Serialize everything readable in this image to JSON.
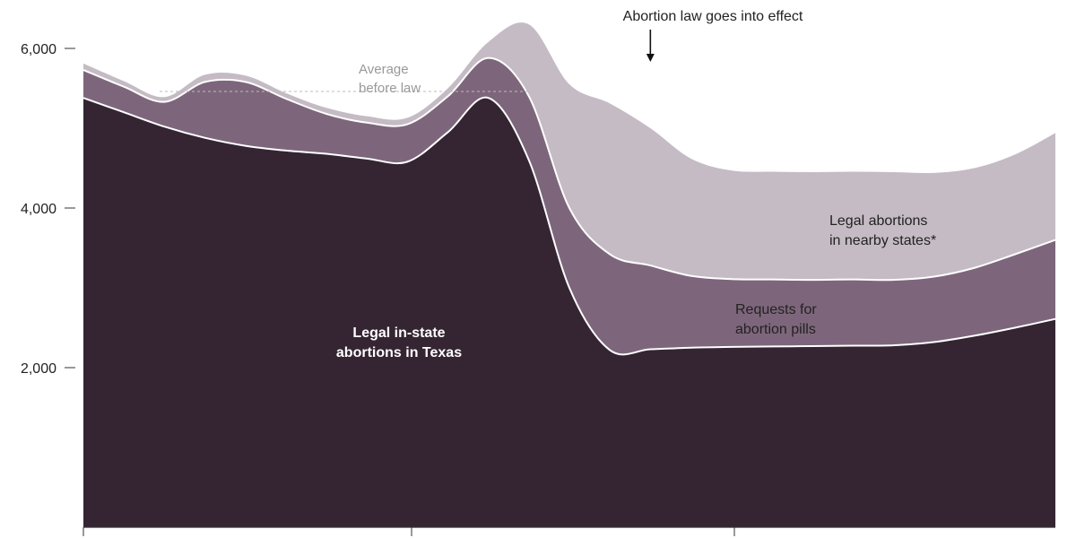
{
  "chart_data": {
    "type": "area",
    "stacked": true,
    "x": [
      0,
      1,
      2,
      3,
      4,
      5,
      6,
      7,
      8,
      9,
      10,
      11,
      12,
      13,
      14,
      15,
      16,
      17,
      18,
      19,
      20,
      21,
      22,
      23,
      24
    ],
    "ylim": [
      0,
      6000
    ],
    "yticks": [
      2000,
      4000,
      6000
    ],
    "ytick_labels": [
      "2,000",
      "4,000",
      "6,000"
    ],
    "series": [
      {
        "name": "Legal in-state abortions in Texas",
        "label_lines": [
          "Legal in-state",
          "abortions in Texas"
        ],
        "color": "#352533",
        "values": [
          5380,
          5200,
          5020,
          4880,
          4780,
          4720,
          4680,
          4620,
          4580,
          4950,
          5380,
          4600,
          3000,
          2220,
          2230,
          2250,
          2260,
          2265,
          2270,
          2275,
          2280,
          2320,
          2400,
          2500,
          2610
        ]
      },
      {
        "name": "Requests for abortion pills",
        "label_lines": [
          "Requests for",
          "abortion pills"
        ],
        "color": "#7d667b",
        "values": [
          350,
          320,
          310,
          700,
          800,
          650,
          500,
          450,
          470,
          450,
          500,
          800,
          1000,
          1200,
          1050,
          900,
          850,
          840,
          830,
          830,
          820,
          820,
          850,
          920,
          990
        ]
      },
      {
        "name": "Legal abortions in nearby states*",
        "label_lines": [
          "Legal abortions",
          "in nearby states*"
        ],
        "color": "#c5bbc4",
        "values": [
          80,
          70,
          60,
          90,
          80,
          70,
          75,
          80,
          80,
          100,
          200,
          900,
          1550,
          1890,
          1720,
          1470,
          1360,
          1350,
          1350,
          1350,
          1350,
          1300,
          1250,
          1250,
          1340
        ]
      }
    ],
    "annotations": {
      "average_line_value": 5460,
      "average_label_lines": [
        "Average",
        "before law"
      ],
      "event_label": "Abortion law goes into effect",
      "event_x": 14
    },
    "colors": {
      "separator": "#ffffff",
      "axis": "#333333",
      "average_line": "#bbbbbb"
    }
  }
}
